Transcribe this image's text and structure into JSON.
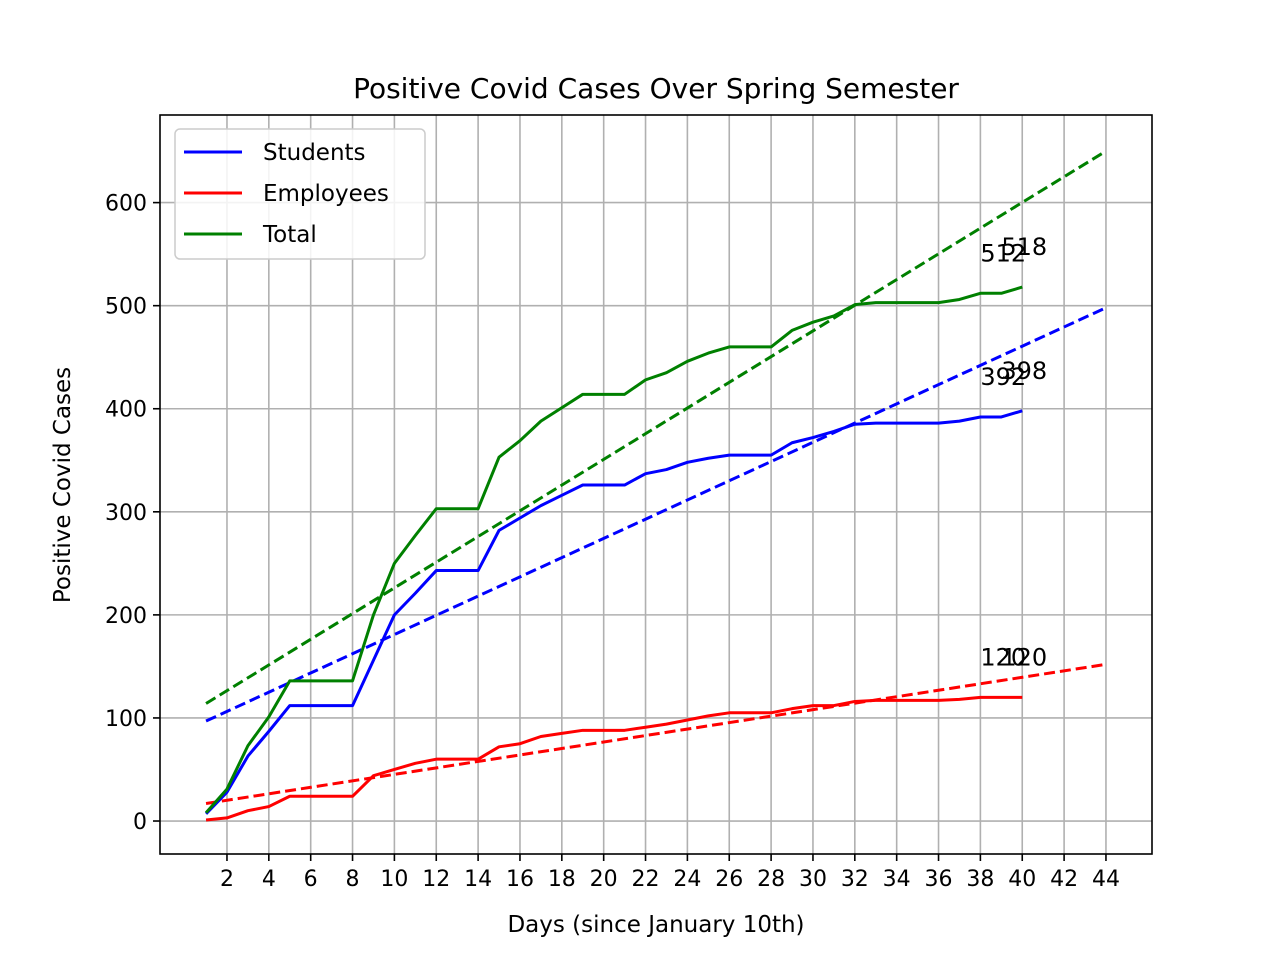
{
  "chart_data": {
    "type": "line",
    "title": "Positive Covid Cases Over Spring Semester",
    "xlabel": "Days (since January 10th)",
    "ylabel": "Positive Covid Cases",
    "xlim": [
      -1.2,
      46.2
    ],
    "ylim": [
      -32,
      685
    ],
    "x_ticks": [
      2,
      4,
      6,
      8,
      10,
      12,
      14,
      16,
      18,
      20,
      22,
      24,
      26,
      28,
      30,
      32,
      34,
      36,
      38,
      40,
      42,
      44
    ],
    "y_ticks": [
      0,
      100,
      200,
      300,
      400,
      500,
      600
    ],
    "grid": true,
    "legend_position": "upper-left",
    "x": [
      1,
      2,
      3,
      4,
      5,
      6,
      7,
      8,
      9,
      10,
      11,
      12,
      13,
      14,
      15,
      16,
      17,
      18,
      19,
      20,
      21,
      22,
      23,
      24,
      25,
      26,
      27,
      28,
      29,
      30,
      31,
      32,
      33,
      34,
      35,
      36,
      37,
      38,
      39,
      40
    ],
    "series": [
      {
        "name": "Students",
        "color": "#0000ff",
        "style": "solid",
        "values": [
          7,
          28,
          63,
          87,
          112,
          112,
          112,
          112,
          156,
          200,
          221,
          243,
          243,
          243,
          282,
          294,
          306,
          316,
          326,
          326,
          326,
          337,
          341,
          348,
          352,
          355,
          355,
          355,
          367,
          372,
          378,
          385,
          386,
          386,
          386,
          386,
          388,
          392,
          392,
          398
        ]
      },
      {
        "name": "Employees",
        "color": "#ff0000",
        "style": "solid",
        "values": [
          1,
          3,
          10,
          14,
          24,
          24,
          24,
          24,
          44,
          50,
          56,
          60,
          60,
          60,
          72,
          75,
          82,
          85,
          88,
          88,
          88,
          91,
          94,
          98,
          102,
          105,
          105,
          105,
          109,
          112,
          112,
          116,
          117,
          117,
          117,
          117,
          118,
          120,
          120,
          120
        ]
      },
      {
        "name": "Total",
        "color": "#008000",
        "style": "solid",
        "values": [
          8,
          31,
          73,
          101,
          136,
          136,
          136,
          136,
          200,
          250,
          277,
          303,
          303,
          303,
          353,
          369,
          388,
          401,
          414,
          414,
          414,
          428,
          435,
          446,
          454,
          460,
          460,
          460,
          476,
          484,
          490,
          501,
          503,
          503,
          503,
          503,
          506,
          512,
          512,
          518
        ]
      }
    ],
    "trendlines": [
      {
        "series": "Students",
        "color": "#0000ff",
        "style": "dashed",
        "x": [
          1,
          44
        ],
        "values": [
          97,
          498
        ]
      },
      {
        "series": "Employees",
        "color": "#ff0000",
        "style": "dashed",
        "x": [
          1,
          44
        ],
        "values": [
          17,
          152
        ]
      },
      {
        "series": "Total",
        "color": "#008000",
        "style": "dashed",
        "x": [
          1,
          44
        ],
        "values": [
          114,
          650
        ]
      }
    ],
    "annotations": [
      {
        "text": "512",
        "x": 38,
        "y": 543
      },
      {
        "text": "518",
        "x": 39,
        "y": 549
      },
      {
        "text": "392",
        "x": 38,
        "y": 423
      },
      {
        "text": "398",
        "x": 39,
        "y": 429
      },
      {
        "text": "120",
        "x": 38,
        "y": 151
      },
      {
        "text": "120",
        "x": 39,
        "y": 151
      }
    ]
  }
}
